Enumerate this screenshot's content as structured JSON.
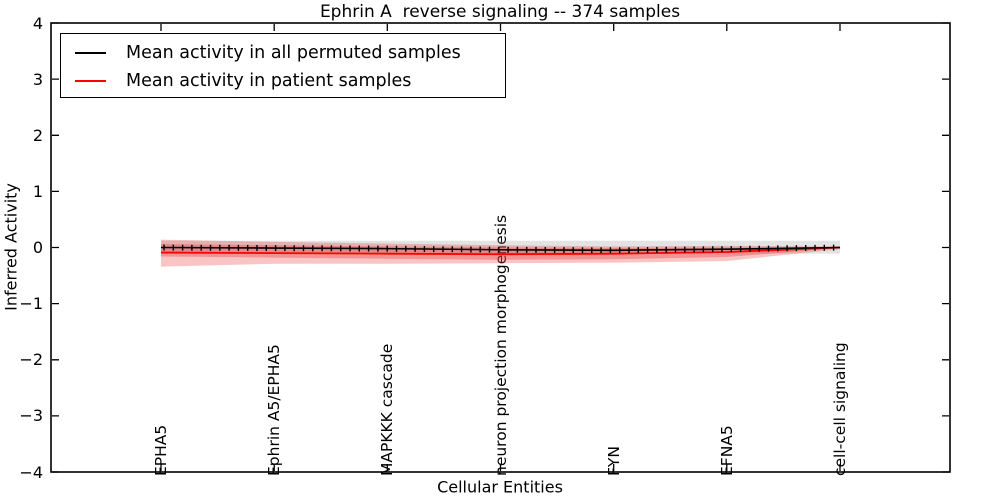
{
  "figure": {
    "title": "Ephrin A  reverse signaling -- 374 samples",
    "xlabel": "Cellular Entities",
    "ylabel": "Inferred Activity"
  },
  "legend": {
    "items": [
      {
        "label": "Mean activity in all permuted samples",
        "color": "#000000"
      },
      {
        "label": "Mean activity in patient samples",
        "color": "#ff0000"
      }
    ]
  },
  "chart_data": {
    "type": "line",
    "title": "Ephrin A  reverse signaling -- 374 samples",
    "xlabel": "Cellular Entities",
    "ylabel": "Inferred Activity",
    "ylim": [
      -4,
      4
    ],
    "yticks": [
      -4,
      -3,
      -2,
      -1,
      0,
      1,
      2,
      3,
      4
    ],
    "grid": false,
    "legend_position": "upper left",
    "categories": [
      "EPHA5",
      "Ephrin A5/EPHA5",
      "MAPKKK cascade",
      "neuron projection morphogenesis",
      "FYN",
      "EFNA5",
      "cell-cell signaling"
    ],
    "series": [
      {
        "name": "Mean activity in all permuted samples",
        "color": "#000000",
        "style": "solid-with-tick-markers",
        "values": [
          0.0,
          -0.01,
          -0.02,
          -0.04,
          -0.05,
          -0.03,
          0.0
        ]
      },
      {
        "name": "Mean activity in patient samples",
        "color": "#ff0000",
        "style": "solid",
        "values": [
          -0.09,
          -0.1,
          -0.11,
          -0.12,
          -0.11,
          -0.08,
          0.0
        ]
      }
    ],
    "bands": [
      {
        "name": "permuted-samples-spread",
        "color": "#999999",
        "opacity": 0.28,
        "top": [
          0.12,
          0.12,
          0.12,
          0.12,
          0.12,
          0.12,
          0.12
        ],
        "bottom": [
          -0.11,
          -0.11,
          -0.11,
          -0.11,
          -0.11,
          -0.11,
          -0.11
        ]
      },
      {
        "name": "patient-samples-outer-spread",
        "color": "#e83c3c",
        "opacity": 0.3,
        "top": [
          0.14,
          0.1,
          0.07,
          0.04,
          0.02,
          0.03,
          0.02
        ],
        "bottom": [
          -0.34,
          -0.29,
          -0.29,
          -0.28,
          -0.27,
          -0.24,
          -0.03
        ]
      },
      {
        "name": "patient-samples-inner-spread",
        "color": "#e83c3c",
        "opacity": 0.35,
        "top": [
          0.06,
          0.04,
          0.02,
          0.0,
          -0.01,
          0.0,
          0.01
        ],
        "bottom": [
          -0.16,
          -0.18,
          -0.2,
          -0.22,
          -0.21,
          -0.17,
          -0.01
        ]
      }
    ]
  }
}
